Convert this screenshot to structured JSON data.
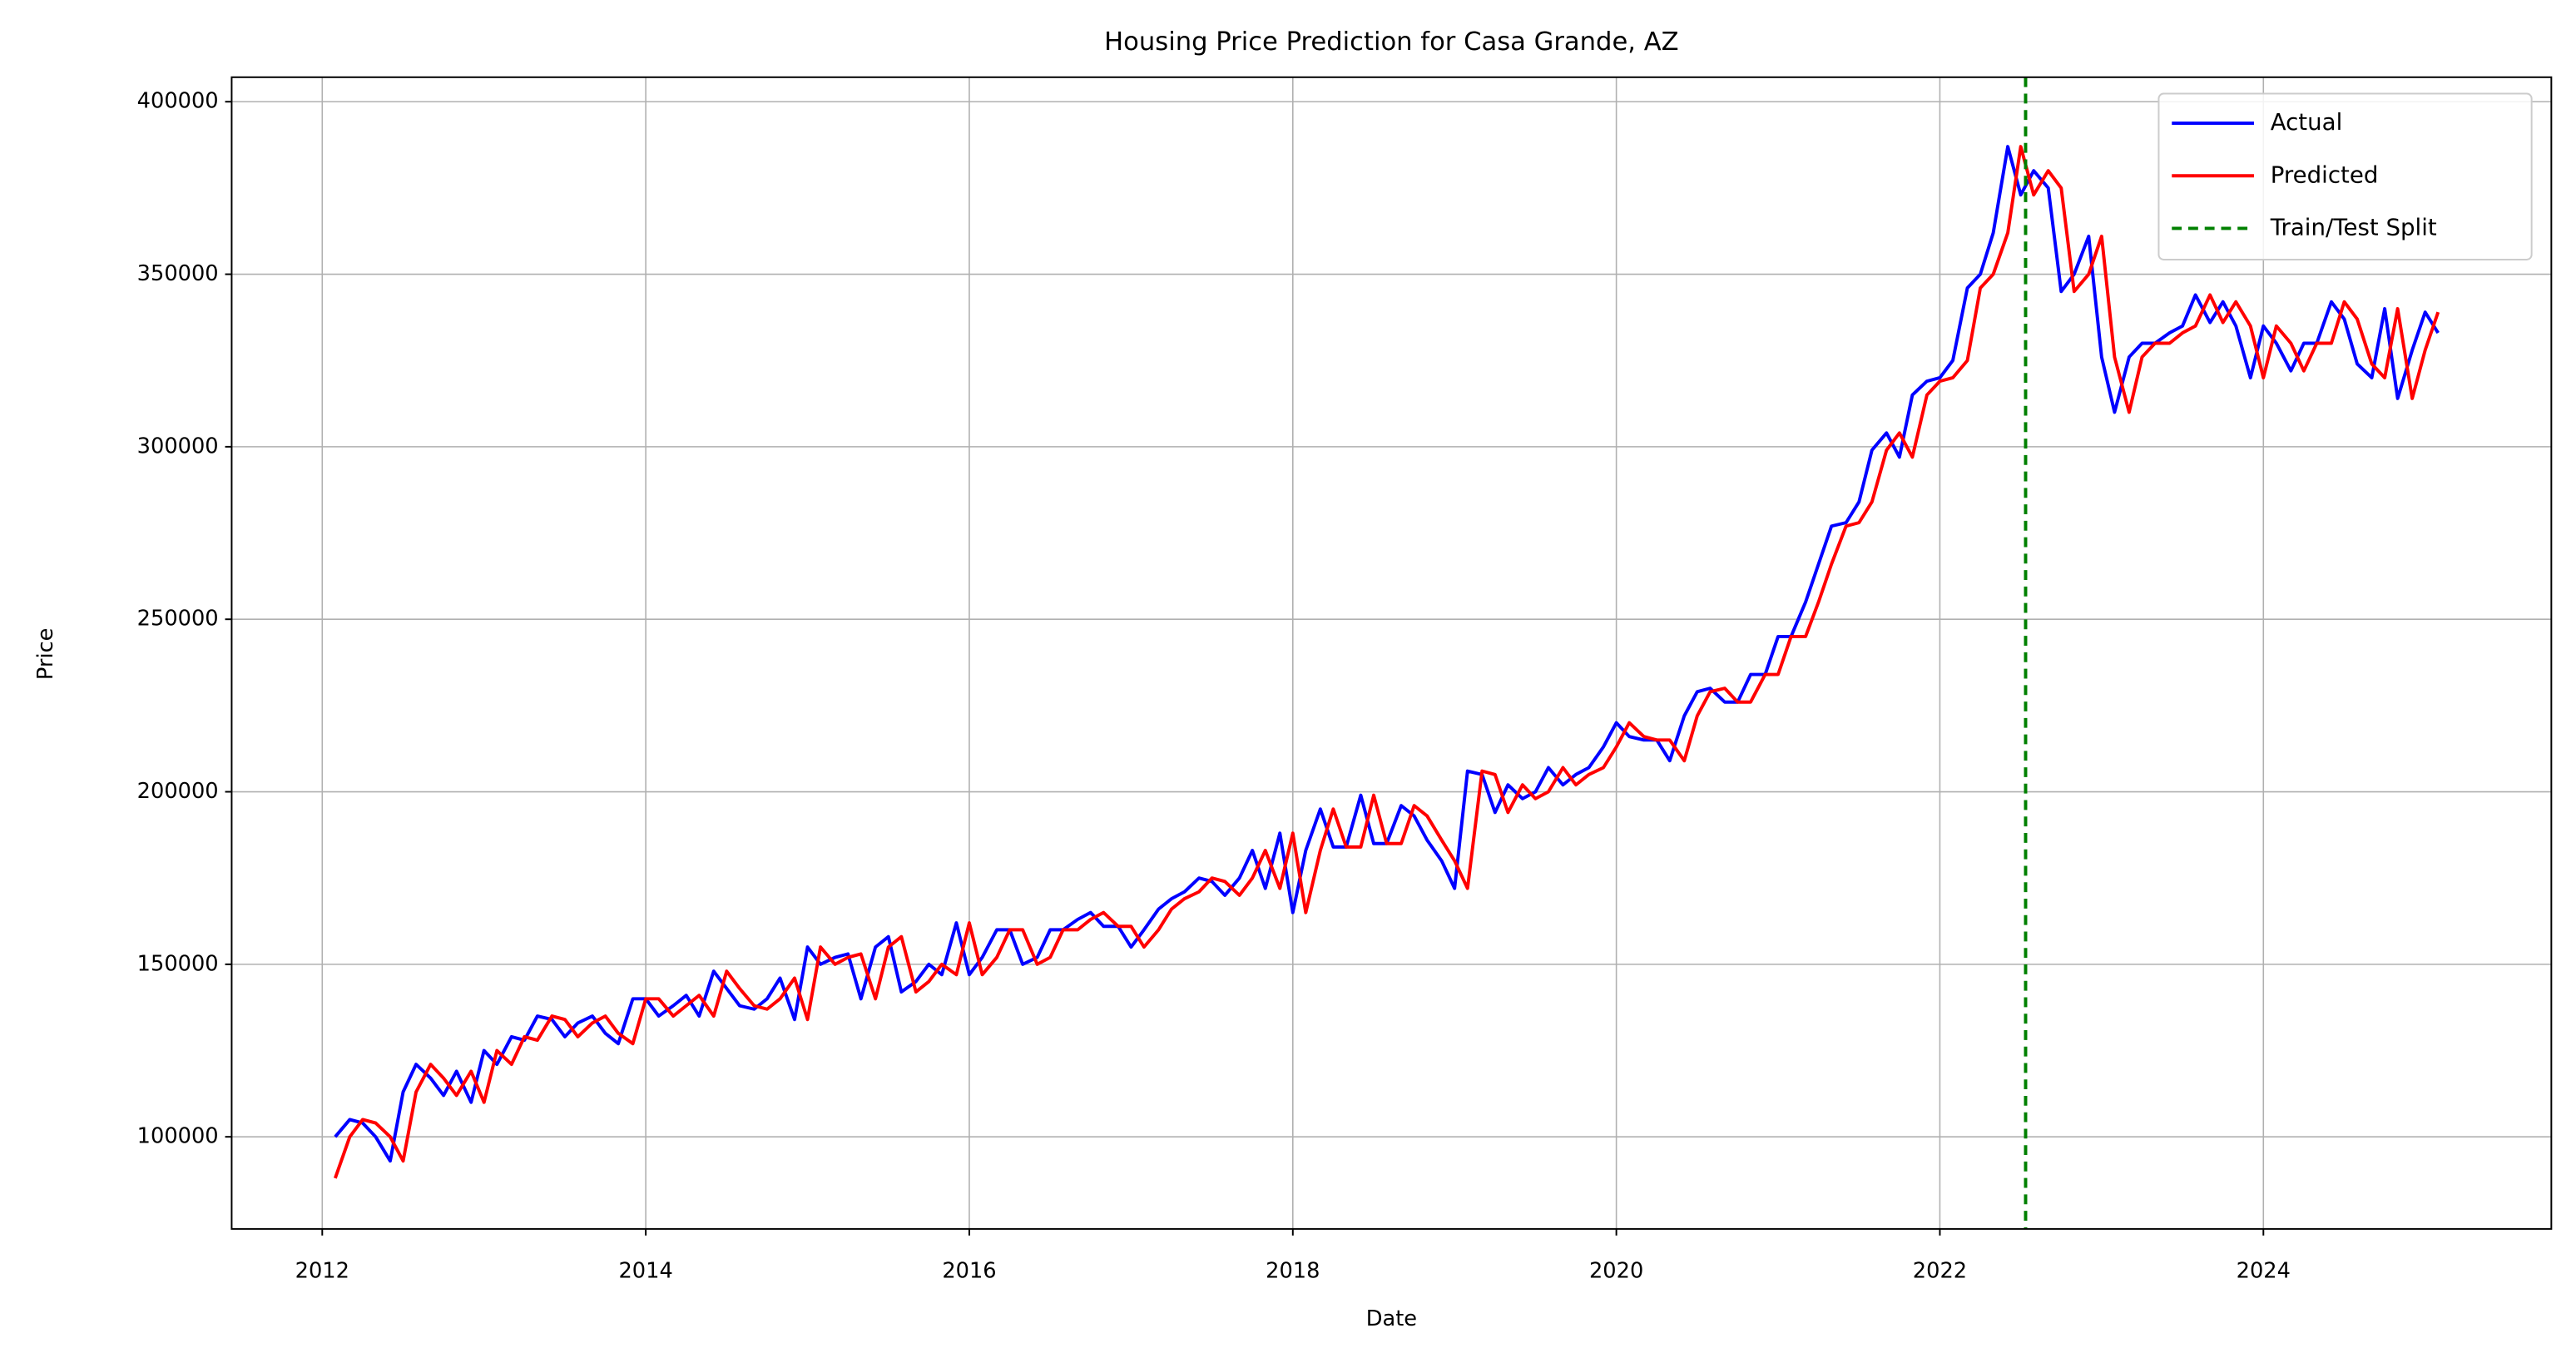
{
  "chart_data": {
    "type": "line",
    "title": "Housing Price Prediction for Casa Grande, AZ",
    "x_label": "Date",
    "y_label": "Price",
    "x": [
      2012.08,
      2012.17,
      2012.25,
      2012.33,
      2012.42,
      2012.5,
      2012.58,
      2012.67,
      2012.75,
      2012.83,
      2012.92,
      2013,
      2013.08,
      2013.17,
      2013.25,
      2013.33,
      2013.42,
      2013.5,
      2013.58,
      2013.67,
      2013.75,
      2013.83,
      2013.92,
      2014,
      2014.08,
      2014.17,
      2014.25,
      2014.33,
      2014.42,
      2014.5,
      2014.58,
      2014.67,
      2014.75,
      2014.83,
      2014.92,
      2015,
      2015.08,
      2015.17,
      2015.25,
      2015.33,
      2015.42,
      2015.5,
      2015.58,
      2015.67,
      2015.75,
      2015.83,
      2015.92,
      2016,
      2016.08,
      2016.17,
      2016.25,
      2016.33,
      2016.42,
      2016.5,
      2016.58,
      2016.67,
      2016.75,
      2016.83,
      2016.92,
      2017,
      2017.08,
      2017.17,
      2017.25,
      2017.33,
      2017.42,
      2017.5,
      2017.58,
      2017.67,
      2017.75,
      2017.83,
      2017.92,
      2018,
      2018.08,
      2018.17,
      2018.25,
      2018.33,
      2018.42,
      2018.5,
      2018.58,
      2018.67,
      2018.75,
      2018.83,
      2018.92,
      2019,
      2019.08,
      2019.17,
      2019.25,
      2019.33,
      2019.42,
      2019.5,
      2019.58,
      2019.67,
      2019.75,
      2019.83,
      2019.92,
      2020,
      2020.08,
      2020.17,
      2020.25,
      2020.33,
      2020.42,
      2020.5,
      2020.58,
      2020.67,
      2020.75,
      2020.83,
      2020.92,
      2021,
      2021.08,
      2021.17,
      2021.25,
      2021.33,
      2021.42,
      2021.5,
      2021.58,
      2021.67,
      2021.75,
      2021.83,
      2021.92,
      2022,
      2022.08,
      2022.17,
      2022.25,
      2022.33,
      2022.42,
      2022.5,
      2022.58,
      2022.67,
      2022.75,
      2022.83,
      2022.92,
      2023,
      2023.08,
      2023.17,
      2023.25,
      2023.33,
      2023.42,
      2023.5,
      2023.58,
      2023.67,
      2023.75,
      2023.83,
      2023.92,
      2024,
      2024.08,
      2024.17,
      2024.25,
      2024.33,
      2024.42,
      2024.5,
      2024.58,
      2024.67,
      2024.75,
      2024.83,
      2024.92,
      2025,
      2025.08
    ],
    "series": [
      {
        "name": "Actual",
        "color": "#0000ff",
        "values": [
          100000,
          105000,
          104000,
          100000,
          93000,
          113000,
          121000,
          117000,
          112000,
          119000,
          110000,
          125000,
          121000,
          129000,
          128000,
          135000,
          134000,
          129000,
          133000,
          135000,
          130000,
          127000,
          140000,
          140000,
          135000,
          138000,
          141000,
          135000,
          148000,
          143000,
          138000,
          137000,
          140000,
          146000,
          134000,
          155000,
          150000,
          152000,
          153000,
          140000,
          155000,
          158000,
          142000,
          145000,
          150000,
          147000,
          162000,
          147000,
          152000,
          160000,
          160000,
          150000,
          152000,
          160000,
          160000,
          163000,
          165000,
          161000,
          161000,
          155000,
          160000,
          166000,
          169000,
          171000,
          175000,
          174000,
          170000,
          175000,
          183000,
          172000,
          188000,
          165000,
          183000,
          195000,
          184000,
          184000,
          199000,
          185000,
          185000,
          196000,
          193000,
          186000,
          180000,
          172000,
          206000,
          205000,
          194000,
          202000,
          198000,
          200000,
          207000,
          202000,
          205000,
          207000,
          213000,
          220000,
          216000,
          215000,
          215000,
          209000,
          222000,
          229000,
          230000,
          226000,
          226000,
          234000,
          234000,
          245000,
          245000,
          255000,
          266000,
          277000,
          278000,
          284000,
          299000,
          304000,
          297000,
          315000,
          319000,
          320000,
          325000,
          346000,
          350000,
          362000,
          387000,
          373000,
          380000,
          375000,
          345000,
          350000,
          361000,
          326000,
          310000,
          326000,
          330000,
          330000,
          333000,
          335000,
          344000,
          336000,
          342000,
          335000,
          320000,
          335000,
          330000,
          322000,
          330000,
          330000,
          342000,
          337000,
          324000,
          320000,
          340000,
          314000,
          328000,
          339000,
          333000
        ]
      },
      {
        "name": "Predicted",
        "color": "#ff0000",
        "values": [
          88000,
          100000,
          105000,
          104000,
          100000,
          93000,
          113000,
          121000,
          117000,
          112000,
          119000,
          110000,
          125000,
          121000,
          129000,
          128000,
          135000,
          134000,
          129000,
          133000,
          135000,
          130000,
          127000,
          140000,
          140000,
          135000,
          138000,
          141000,
          135000,
          148000,
          143000,
          138000,
          137000,
          140000,
          146000,
          134000,
          155000,
          150000,
          152000,
          153000,
          140000,
          155000,
          158000,
          142000,
          145000,
          150000,
          147000,
          162000,
          147000,
          152000,
          160000,
          160000,
          150000,
          152000,
          160000,
          160000,
          163000,
          165000,
          161000,
          161000,
          155000,
          160000,
          166000,
          169000,
          171000,
          175000,
          174000,
          170000,
          175000,
          183000,
          172000,
          188000,
          165000,
          183000,
          195000,
          184000,
          184000,
          199000,
          185000,
          185000,
          196000,
          193000,
          186000,
          180000,
          172000,
          206000,
          205000,
          194000,
          202000,
          198000,
          200000,
          207000,
          202000,
          205000,
          207000,
          213000,
          220000,
          216000,
          215000,
          215000,
          209000,
          222000,
          229000,
          230000,
          226000,
          226000,
          234000,
          234000,
          245000,
          245000,
          255000,
          266000,
          277000,
          278000,
          284000,
          299000,
          304000,
          297000,
          315000,
          319000,
          320000,
          325000,
          346000,
          350000,
          362000,
          387000,
          373000,
          380000,
          375000,
          345000,
          350000,
          361000,
          326000,
          310000,
          326000,
          330000,
          330000,
          333000,
          335000,
          344000,
          336000,
          342000,
          335000,
          320000,
          335000,
          330000,
          322000,
          330000,
          330000,
          342000,
          337000,
          324000,
          320000,
          340000,
          314000,
          328000,
          339000
        ]
      }
    ],
    "split": {
      "name": "Train/Test Split",
      "x": 2022.53,
      "color": "#008000"
    },
    "xlim": [
      2011.44,
      2025.78
    ],
    "xticks": [
      2012,
      2014,
      2016,
      2018,
      2020,
      2022,
      2024
    ],
    "ylim": [
      73300,
      407100
    ],
    "yticks": [
      100000,
      150000,
      200000,
      250000,
      300000,
      350000,
      400000
    ],
    "grid": true,
    "legend": "upper right"
  }
}
